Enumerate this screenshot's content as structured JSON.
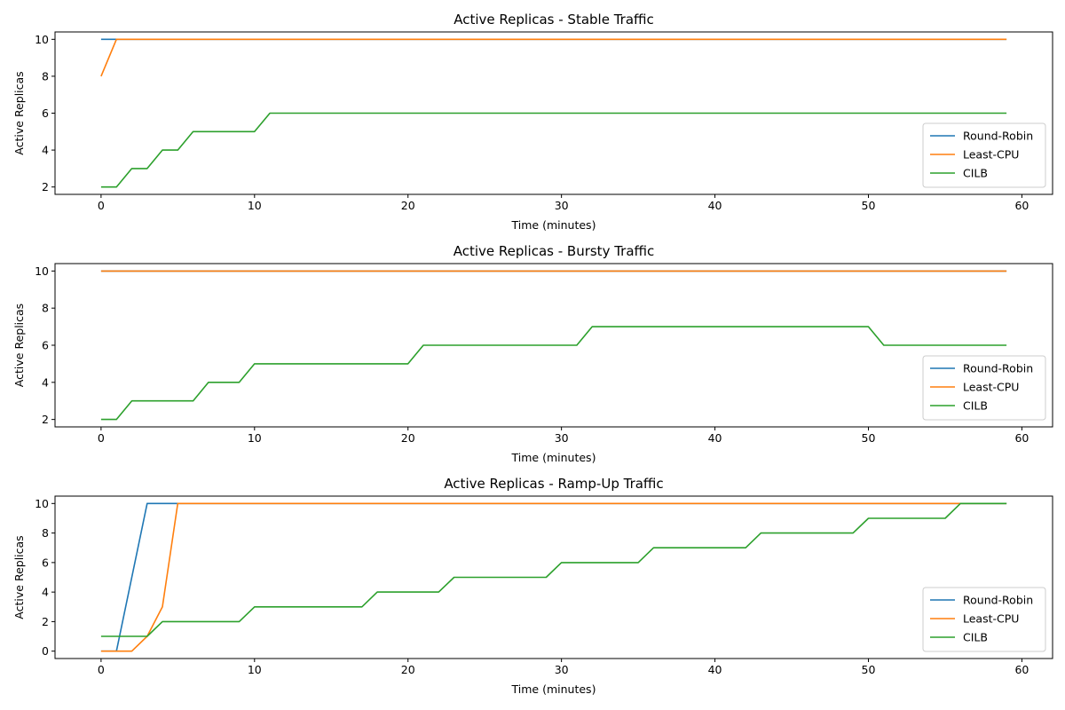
{
  "chart_data": [
    {
      "type": "line",
      "title": "Active Replicas - Stable Traffic",
      "xlabel": "Time (minutes)",
      "ylabel": "Active Replicas",
      "xlim": [
        -3,
        62
      ],
      "ylim": [
        1.6,
        10.4
      ],
      "xticks": [
        0,
        10,
        20,
        30,
        40,
        50,
        60
      ],
      "yticks": [
        2,
        4,
        6,
        8,
        10
      ],
      "grid": false,
      "legend_position": "lower-right",
      "series": [
        {
          "name": "Round-Robin",
          "color": "#1f77b4",
          "points": [
            [
              0,
              10
            ],
            [
              59,
              10
            ]
          ]
        },
        {
          "name": "Least-CPU",
          "color": "#ff7f0e",
          "points": [
            [
              0,
              8
            ],
            [
              1,
              10
            ],
            [
              59,
              10
            ]
          ]
        },
        {
          "name": "CILB",
          "color": "#2ca02c",
          "points": [
            [
              0,
              2
            ],
            [
              1,
              2
            ],
            [
              2,
              3
            ],
            [
              3,
              3
            ],
            [
              4,
              4
            ],
            [
              5,
              4
            ],
            [
              6,
              5
            ],
            [
              10,
              5
            ],
            [
              11,
              6
            ],
            [
              59,
              6
            ]
          ]
        }
      ]
    },
    {
      "type": "line",
      "title": "Active Replicas - Bursty Traffic",
      "xlabel": "Time (minutes)",
      "ylabel": "Active Replicas",
      "xlim": [
        -3,
        62
      ],
      "ylim": [
        1.6,
        10.4
      ],
      "xticks": [
        0,
        10,
        20,
        30,
        40,
        50,
        60
      ],
      "yticks": [
        2,
        4,
        6,
        8,
        10
      ],
      "grid": false,
      "legend_position": "lower-right",
      "series": [
        {
          "name": "Round-Robin",
          "color": "#1f77b4",
          "points": [
            [
              0,
              10
            ],
            [
              59,
              10
            ]
          ]
        },
        {
          "name": "Least-CPU",
          "color": "#ff7f0e",
          "points": [
            [
              0,
              10
            ],
            [
              59,
              10
            ]
          ]
        },
        {
          "name": "CILB",
          "color": "#2ca02c",
          "points": [
            [
              0,
              2
            ],
            [
              1,
              2
            ],
            [
              2,
              3
            ],
            [
              6,
              3
            ],
            [
              7,
              4
            ],
            [
              9,
              4
            ],
            [
              10,
              5
            ],
            [
              20,
              5
            ],
            [
              21,
              6
            ],
            [
              31,
              6
            ],
            [
              32,
              7
            ],
            [
              50,
              7
            ],
            [
              51,
              6
            ],
            [
              59,
              6
            ]
          ]
        }
      ]
    },
    {
      "type": "line",
      "title": "Active Replicas - Ramp-Up Traffic",
      "xlabel": "Time (minutes)",
      "ylabel": "Active Replicas",
      "xlim": [
        -3,
        62
      ],
      "ylim": [
        -0.5,
        10.5
      ],
      "xticks": [
        0,
        10,
        20,
        30,
        40,
        50,
        60
      ],
      "yticks": [
        0,
        2,
        4,
        6,
        8,
        10
      ],
      "grid": false,
      "legend_position": "lower-right",
      "series": [
        {
          "name": "Round-Robin",
          "color": "#1f77b4",
          "points": [
            [
              0,
              0
            ],
            [
              1,
              0
            ],
            [
              3,
              10
            ],
            [
              59,
              10
            ]
          ]
        },
        {
          "name": "Least-CPU",
          "color": "#ff7f0e",
          "points": [
            [
              0,
              0
            ],
            [
              2,
              0
            ],
            [
              3,
              1
            ],
            [
              4,
              3
            ],
            [
              5,
              10
            ],
            [
              59,
              10
            ]
          ]
        },
        {
          "name": "CILB",
          "color": "#2ca02c",
          "points": [
            [
              0,
              1
            ],
            [
              3,
              1
            ],
            [
              4,
              2
            ],
            [
              9,
              2
            ],
            [
              10,
              3
            ],
            [
              17,
              3
            ],
            [
              18,
              4
            ],
            [
              22,
              4
            ],
            [
              23,
              5
            ],
            [
              29,
              5
            ],
            [
              30,
              6
            ],
            [
              35,
              6
            ],
            [
              36,
              7
            ],
            [
              42,
              7
            ],
            [
              43,
              8
            ],
            [
              49,
              8
            ],
            [
              50,
              9
            ],
            [
              55,
              9
            ],
            [
              56,
              10
            ],
            [
              59,
              10
            ]
          ]
        }
      ]
    }
  ]
}
